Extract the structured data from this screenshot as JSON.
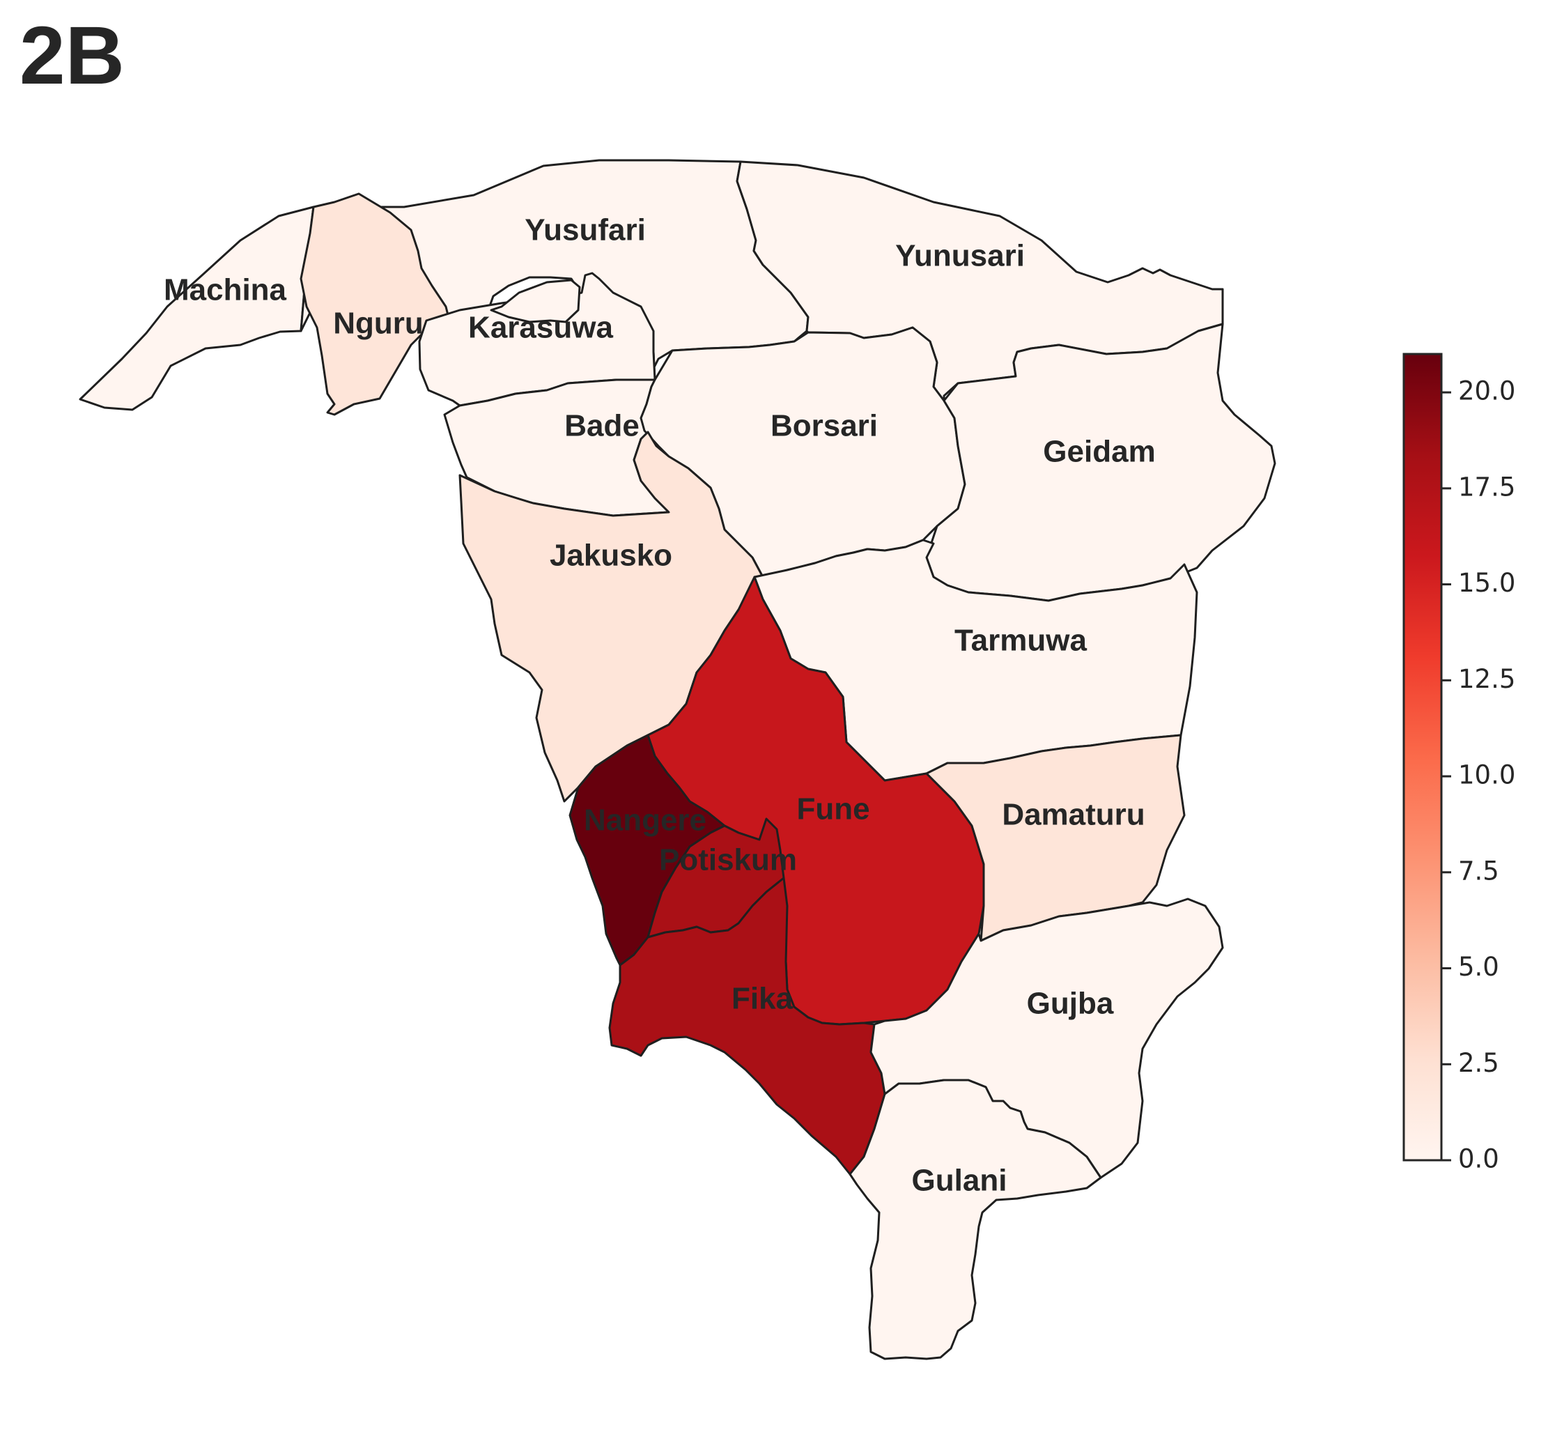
{
  "figure": {
    "panel_label": "2B",
    "map_type": "choropleth",
    "colormap": "Reds",
    "edge_color": "#1f1f1f"
  },
  "regions": [
    {
      "id": "machina",
      "name": "Machina",
      "value": 0
    },
    {
      "id": "yusufari",
      "name": "Yusufari",
      "value": 0
    },
    {
      "id": "yunusari",
      "name": "Yunusari",
      "value": 0
    },
    {
      "id": "nguru",
      "name": "Nguru",
      "value": 2
    },
    {
      "id": "karasuwa",
      "name": "Karasuwa",
      "value": 0
    },
    {
      "id": "bade",
      "name": "Bade",
      "value": 0
    },
    {
      "id": "borsari",
      "name": "Borsari",
      "value": 0
    },
    {
      "id": "geidam",
      "name": "Geidam",
      "value": 0
    },
    {
      "id": "jakusko",
      "name": "Jakusko",
      "value": 2
    },
    {
      "id": "tarmuwa",
      "name": "Tarmuwa",
      "value": 0
    },
    {
      "id": "fune",
      "name": "Fune",
      "value": 16
    },
    {
      "id": "nangere",
      "name": "Nangere",
      "value": 21
    },
    {
      "id": "potiskum",
      "name": "Potiskum",
      "value": 18
    },
    {
      "id": "damaturu",
      "name": "Damaturu",
      "value": 2
    },
    {
      "id": "fika",
      "name": "Fika",
      "value": 18
    },
    {
      "id": "gujba",
      "name": "Gujba",
      "value": 0
    },
    {
      "id": "gulani",
      "name": "Gulani",
      "value": 0
    }
  ],
  "colorbar": {
    "min": 0,
    "max": 21,
    "ticks": [
      "0.0",
      "2.5",
      "5.0",
      "7.5",
      "10.0",
      "12.5",
      "15.0",
      "17.5",
      "20.0"
    ],
    "stops": [
      "#fff5f0",
      "#fee0d2",
      "#fcbba1",
      "#fc9272",
      "#fb6a4a",
      "#ef3b2c",
      "#cb181d",
      "#a50f15",
      "#67000d"
    ]
  }
}
